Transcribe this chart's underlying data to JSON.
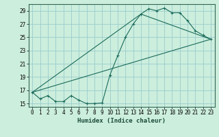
{
  "xlabel": "Humidex (Indice chaleur)",
  "bg_color": "#cceedd",
  "grid_color": "#99cccc",
  "line_color": "#1a6a5a",
  "xlim": [
    -0.5,
    23.5
  ],
  "ylim": [
    14.5,
    30.0
  ],
  "xticks": [
    0,
    1,
    2,
    3,
    4,
    5,
    6,
    7,
    8,
    9,
    10,
    11,
    12,
    13,
    14,
    15,
    16,
    17,
    18,
    19,
    20,
    21,
    22,
    23
  ],
  "yticks": [
    15,
    17,
    19,
    21,
    23,
    25,
    27,
    29
  ],
  "series1_x": [
    0,
    1,
    2,
    3,
    4,
    5,
    6,
    7,
    8,
    9,
    10,
    11,
    12,
    13,
    14,
    15,
    16,
    17,
    18,
    19,
    20,
    21,
    22,
    23
  ],
  "series1_y": [
    16.7,
    15.7,
    16.2,
    15.3,
    15.3,
    16.2,
    15.5,
    15.0,
    15.0,
    15.1,
    19.3,
    22.2,
    25.0,
    27.0,
    28.5,
    29.3,
    29.0,
    29.4,
    28.7,
    28.7,
    27.5,
    26.0,
    25.3,
    24.7
  ],
  "series2_x": [
    0,
    23
  ],
  "series2_y": [
    16.7,
    24.7
  ],
  "series3_x": [
    0,
    14,
    23
  ],
  "series3_y": [
    16.7,
    28.5,
    24.7
  ],
  "tick_fontsize": 5.5,
  "xlabel_fontsize": 6.5
}
